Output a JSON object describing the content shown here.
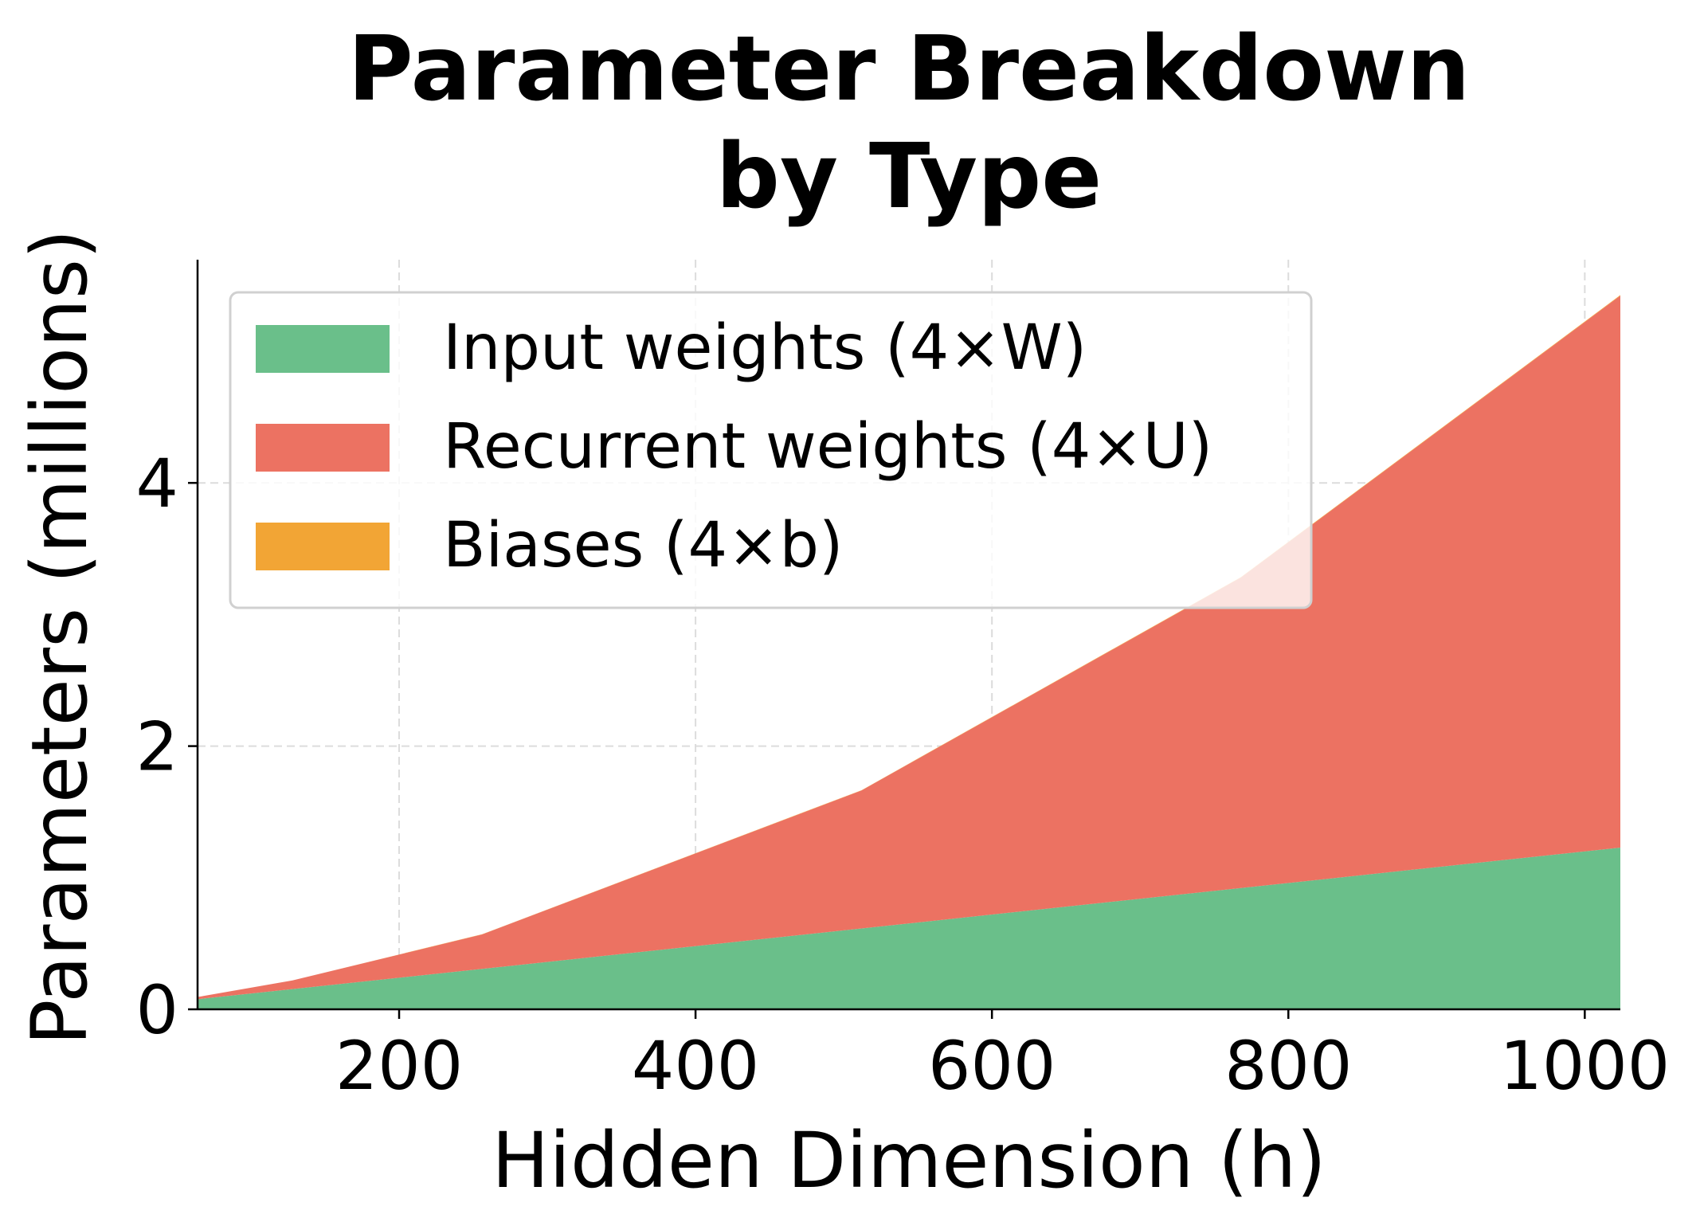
{
  "chart_data": {
    "type": "area",
    "stacked": true,
    "title": "Parameter Breakdown\nby Type",
    "title_lines": [
      "Parameter Breakdown",
      "by Type"
    ],
    "xlabel": "Hidden Dimension (h)",
    "ylabel": "Parameters (millions)",
    "x": [
      64,
      128,
      256,
      512,
      768,
      1024
    ],
    "xlim": [
      64,
      1024
    ],
    "ylim": [
      0,
      5.7
    ],
    "xticks": [
      200,
      400,
      600,
      800,
      1000
    ],
    "yticks": [
      0,
      2,
      4
    ],
    "grid": true,
    "legend_position": "upper-left",
    "series": [
      {
        "name": "Input weights (4×W)",
        "color": "#6abf8a",
        "values": [
          0.0768,
          0.1536,
          0.3072,
          0.6144,
          0.9216,
          1.2288
        ]
      },
      {
        "name": "Recurrent weights (4×U)",
        "color": "#ec7262",
        "values": [
          0.0164,
          0.0655,
          0.2621,
          1.0486,
          2.3593,
          4.1943
        ]
      },
      {
        "name": "Biases (4×b)",
        "color": "#f2a535",
        "values": [
          0.0003,
          0.0005,
          0.001,
          0.002,
          0.0031,
          0.0041
        ]
      }
    ]
  }
}
